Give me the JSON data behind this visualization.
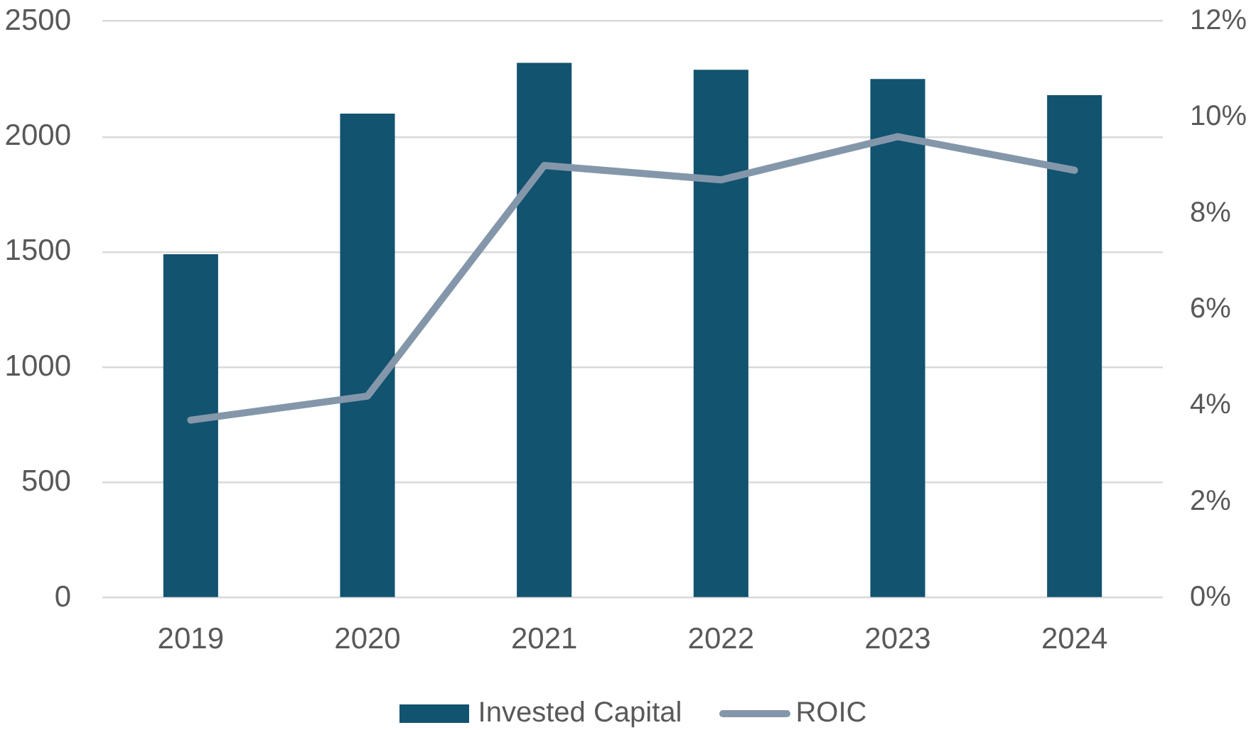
{
  "chart_data": {
    "type": "bar",
    "categories": [
      "2019",
      "2020",
      "2021",
      "2022",
      "2023",
      "2024"
    ],
    "series": [
      {
        "name": "Invested Capital",
        "color": "#12536f",
        "values": [
          1490,
          2100,
          2320,
          2290,
          2250,
          2180
        ]
      },
      {
        "name": "ROIC",
        "type": "line",
        "axis": "y2",
        "color": "#8497aa",
        "values": [
          3.7,
          4.2,
          9.0,
          8.7,
          9.6,
          8.9
        ]
      }
    ],
    "ylim": [
      0,
      2500
    ],
    "yticks": [
      0,
      500,
      1000,
      1500,
      2000,
      2500
    ],
    "y2lim": [
      0,
      12
    ],
    "y2ticks": [
      {
        "value": 0,
        "label": "0%"
      },
      {
        "value": 2,
        "label": "2%"
      },
      {
        "value": 4,
        "label": "4%"
      },
      {
        "value": 6,
        "label": "6%"
      },
      {
        "value": 8,
        "label": "8%"
      },
      {
        "value": 10,
        "label": "10%"
      },
      {
        "value": 12,
        "label": "12%"
      }
    ],
    "grid": "y",
    "legend": "bottom",
    "marker": "none"
  }
}
